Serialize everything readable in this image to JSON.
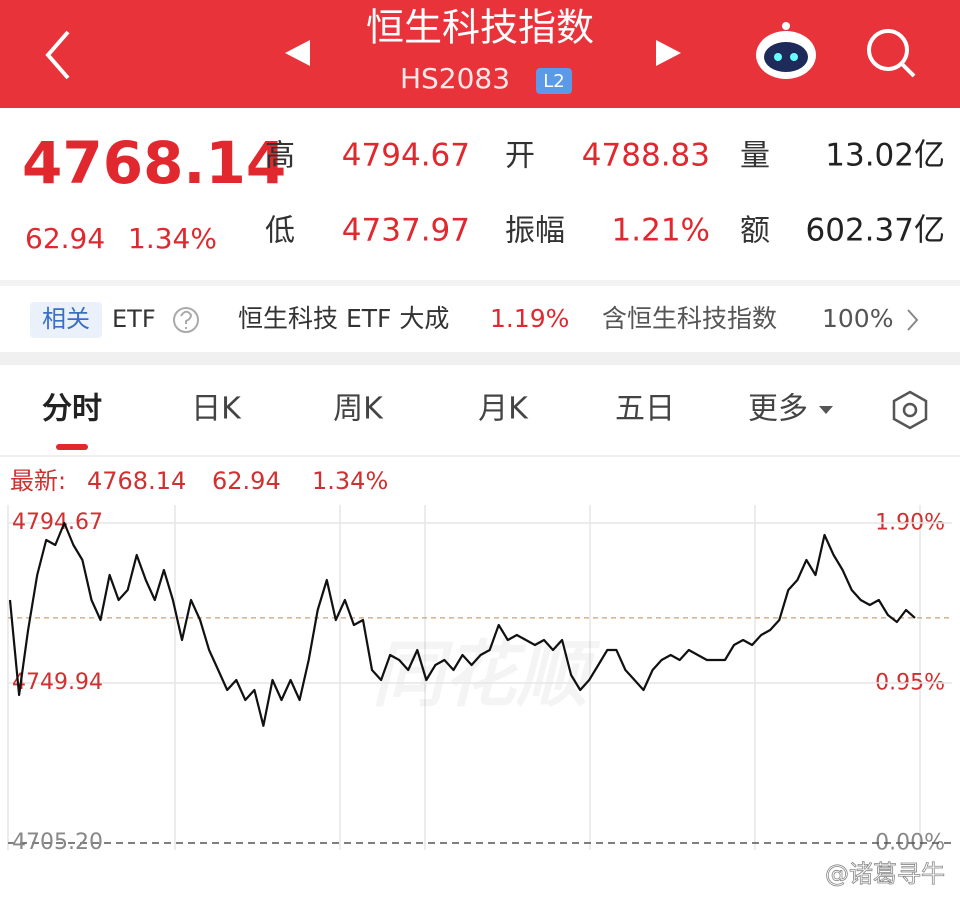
{
  "header": {
    "title": "恒生科技指数",
    "code": "HS2083",
    "badge": "L2"
  },
  "quote": {
    "price": 4768.14,
    "change": 62.94,
    "change_pct": "1.34%",
    "stats": [
      {
        "label": "高",
        "value": 4794.67
      },
      {
        "label": "开",
        "value": 4788.83
      },
      {
        "label": "量",
        "value": "13.02亿"
      },
      {
        "label": "低",
        "value": 4737.97
      },
      {
        "label": "振幅",
        "value": "1.21%"
      },
      {
        "label": "额",
        "value": "602.37亿"
      }
    ]
  },
  "etf": {
    "tag": "相关",
    "label": "ETF",
    "name": "恒生科技 ETF 大成",
    "change_pct": "1.19%",
    "contains": "含恒生科技指数",
    "weight": "100%"
  },
  "tabs": [
    "分时",
    "日K",
    "周K",
    "月K",
    "五日",
    "更多"
  ],
  "latest": {
    "label": "最新:",
    "price": 4768.14,
    "change": 62.94,
    "change_pct": "1.34%"
  },
  "watermark": "同花顺",
  "footer": "@诸葛寻牛",
  "chart_data": {
    "type": "line",
    "color": "#111111",
    "values": [
      4773.13,
      4746.57,
      4764.75,
      4780.12,
      4789.91,
      4788.51,
      4794.67,
      4788.51,
      4784.32,
      4773.13,
      4767.54,
      4780.12,
      4773.13,
      4775.93,
      4785.71,
      4778.72,
      4773.13,
      4781.52,
      4773.13,
      4761.95,
      4773.13,
      4767.54,
      4759.15,
      4753.56,
      4747.97,
      4750.77,
      4745.18,
      4747.97,
      4737.97,
      4750.77,
      4745.18,
      4750.77,
      4745.18,
      4756.36,
      4770.34,
      4778.72,
      4767.54,
      4773.13,
      4766.14,
      4767.54,
      4753.56,
      4750.77,
      4757.76,
      4756.36,
      4753.56,
      4759.15,
      4750.77,
      4754.96,
      4756.36,
      4753.56,
      4757.76,
      4754.96,
      4757.76,
      4759.15,
      4766.14,
      4761.95,
      4763.35,
      4761.95,
      4760.55,
      4761.95,
      4759.15,
      4761.95,
      4752.17,
      4747.97,
      4750.77,
      4754.96,
      4759.15,
      4759.15,
      4753.56,
      4750.77,
      4747.97,
      4753.56,
      4756.36,
      4757.76,
      4756.36,
      4759.15,
      4757.76,
      4756.36,
      4756.36,
      4756.36,
      4760.55,
      4761.95,
      4760.55,
      4763.35,
      4764.75,
      4767.54,
      4775.93,
      4778.72,
      4784.32,
      4780.12,
      4791.3,
      4785.71,
      4781.52,
      4775.93,
      4773.13,
      4771.74,
      4773.13,
      4768.94,
      4766.98,
      4770.34,
      4768.14
    ],
    "ylim": [
      4703.24,
      4799.69
    ],
    "yticks": [
      4794.67,
      4749.94,
      {
        "value": 4705.2,
        "label": "4705.20"
      }
    ],
    "y2lim": [
      -0.04,
      2.01
    ],
    "y2ticks": [
      {
        "value": 1.9,
        "label": "1.90%"
      },
      {
        "value": 0.95,
        "label": "0.95%"
      },
      {
        "value": 0,
        "label": "0.00%"
      }
    ],
    "grid": true
  }
}
